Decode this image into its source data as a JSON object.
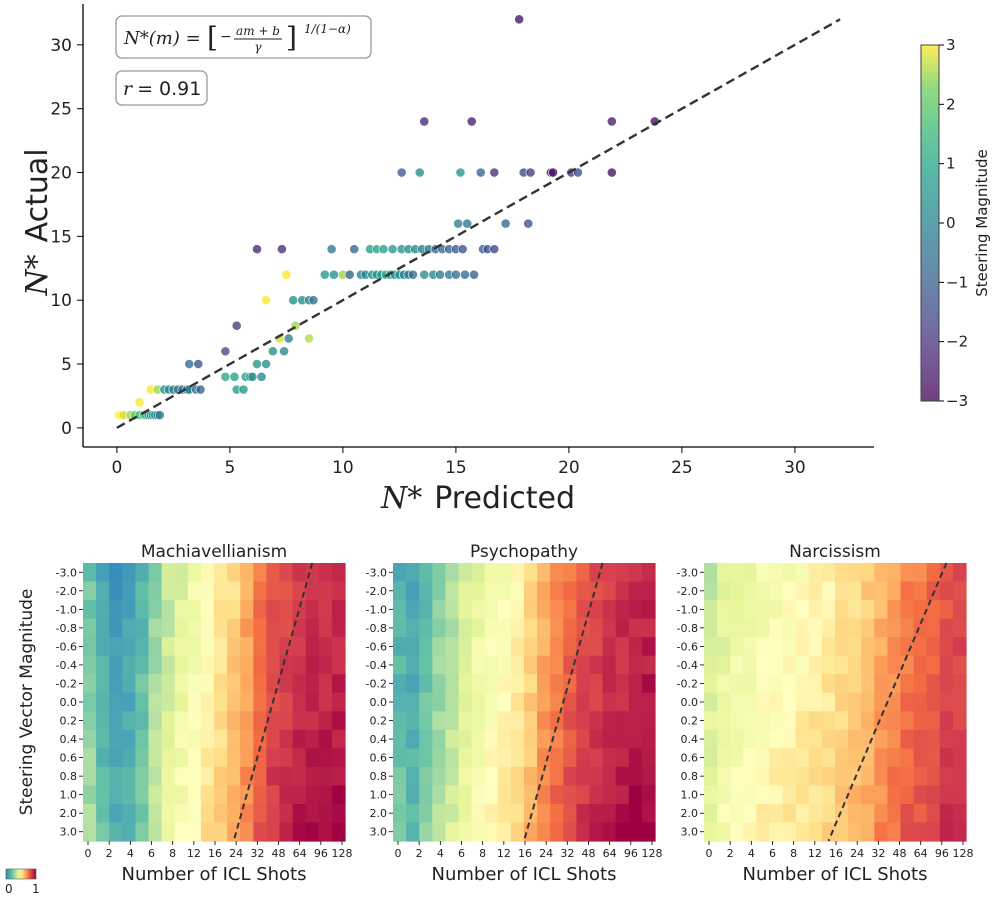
{
  "chart_data": [
    {
      "type": "scatter",
      "id": "nstar",
      "xlabel_math": "N*",
      "xlabel_text": "Predicted",
      "ylabel_math": "N*",
      "ylabel_text": "Actual",
      "xlim": [
        -1.5,
        33.5
      ],
      "ylim": [
        -1.5,
        33.2
      ],
      "xticks": [
        0,
        5,
        10,
        15,
        20,
        25,
        30
      ],
      "yticks": [
        0,
        5,
        10,
        15,
        20,
        25,
        30
      ],
      "formula_text": "N*(m) = [ −(am+b)/γ ]^(1/(1−α))",
      "formula": {
        "lhs": "N*(m) =",
        "num": "am + b",
        "den": "γ",
        "exp": "1/(1−α)"
      },
      "r_label": "r",
      "r_value": "= 0.91",
      "fit_line": {
        "x": [
          0,
          32
        ],
        "y": [
          0,
          32
        ]
      },
      "colorbar": {
        "label": "Steering Magnitude",
        "min": -3,
        "max": 3,
        "ticks": [
          3,
          2,
          1,
          0,
          -1,
          -2,
          -3
        ],
        "palette": "viridis"
      },
      "points": [
        [
          0.1,
          1,
          3
        ],
        [
          0.2,
          1,
          3
        ],
        [
          0.3,
          1,
          2.8
        ],
        [
          0.6,
          1,
          2.5
        ],
        [
          0.8,
          1,
          2
        ],
        [
          1.0,
          1,
          1.8
        ],
        [
          1.2,
          1,
          1.4
        ],
        [
          1.3,
          1,
          1
        ],
        [
          1.4,
          1,
          0.8
        ],
        [
          1.5,
          1,
          0.6
        ],
        [
          1.6,
          1,
          0.4
        ],
        [
          1.7,
          1,
          0.2
        ],
        [
          1.8,
          1,
          0.1
        ],
        [
          1.9,
          1,
          0
        ],
        [
          1.0,
          2,
          3
        ],
        [
          1.5,
          3,
          3
        ],
        [
          1.8,
          3,
          2.5
        ],
        [
          2.1,
          3,
          0.4
        ],
        [
          2.3,
          3,
          0.2
        ],
        [
          2.5,
          3,
          0
        ],
        [
          2.7,
          3,
          -0.2
        ],
        [
          2.9,
          3,
          -0.4
        ],
        [
          3.1,
          3,
          -0.6
        ],
        [
          3.2,
          3,
          -0.2
        ],
        [
          3.5,
          3,
          -0.5
        ],
        [
          3.7,
          3,
          -0.8
        ],
        [
          3.2,
          5,
          -0.8
        ],
        [
          3.6,
          5,
          -1.2
        ],
        [
          4.8,
          6,
          -1.5
        ],
        [
          5.3,
          8,
          -1.8
        ],
        [
          4.8,
          4,
          1
        ],
        [
          5.2,
          4,
          0.9
        ],
        [
          5.7,
          4,
          0.7
        ],
        [
          5.9,
          4,
          0.5
        ],
        [
          6.0,
          4,
          0.3
        ],
        [
          6.4,
          4,
          0.2
        ],
        [
          5.3,
          3,
          0.8
        ],
        [
          5.6,
          3,
          0.6
        ],
        [
          6.2,
          5,
          0.5
        ],
        [
          6.6,
          5,
          0.3
        ],
        [
          6.9,
          6,
          0.2
        ],
        [
          7.4,
          6,
          0.1
        ],
        [
          7.6,
          7,
          -0.1
        ],
        [
          6.6,
          10,
          3
        ],
        [
          7.5,
          12,
          3
        ],
        [
          7.2,
          7,
          2.8
        ],
        [
          7.9,
          8,
          2.5
        ],
        [
          8.5,
          7,
          2.6
        ],
        [
          6.2,
          14,
          -2.3
        ],
        [
          7.3,
          14,
          -2.2
        ],
        [
          7.8,
          10,
          0.4
        ],
        [
          8.2,
          10,
          0.2
        ],
        [
          8.5,
          10,
          -0.2
        ],
        [
          8.7,
          10,
          -0.4
        ],
        [
          9.2,
          12,
          0.6
        ],
        [
          9.6,
          12,
          0.3
        ],
        [
          9.5,
          14,
          -0.3
        ],
        [
          10.0,
          12,
          2.5
        ],
        [
          10.3,
          12,
          -1
        ],
        [
          10.5,
          14,
          -0.8
        ],
        [
          10.8,
          12,
          -0.2
        ],
        [
          11.0,
          12,
          0.2
        ],
        [
          11.3,
          12,
          0.4
        ],
        [
          11.5,
          12,
          0.6
        ],
        [
          11.7,
          12,
          0.8
        ],
        [
          11.9,
          12,
          1
        ],
        [
          12.1,
          12,
          0.7
        ],
        [
          12.3,
          12,
          0.5
        ],
        [
          12.5,
          12,
          0.3
        ],
        [
          12.7,
          12,
          0
        ],
        [
          12.9,
          12,
          -0.3
        ],
        [
          13.1,
          12,
          -0.5
        ],
        [
          11.2,
          14,
          0.8
        ],
        [
          11.5,
          14,
          1
        ],
        [
          11.8,
          14,
          0.9
        ],
        [
          12.2,
          14,
          0.7
        ],
        [
          12.6,
          14,
          0.5
        ],
        [
          12.9,
          14,
          0.3
        ],
        [
          13.2,
          14,
          0.1
        ],
        [
          13.5,
          14,
          -0.1
        ],
        [
          13.8,
          14,
          -0.3
        ],
        [
          14.1,
          14,
          -0.5
        ],
        [
          14.4,
          14,
          -0.7
        ],
        [
          14.7,
          14,
          -0.9
        ],
        [
          15.0,
          14,
          -1.1
        ],
        [
          15.3,
          14,
          -1.3
        ],
        [
          13.6,
          12,
          0.3
        ],
        [
          14.0,
          12,
          0.1
        ],
        [
          14.3,
          12,
          -0.1
        ],
        [
          14.7,
          12,
          -0.3
        ],
        [
          15.0,
          12,
          -0.5
        ],
        [
          15.4,
          12,
          -0.7
        ],
        [
          15.8,
          12,
          -0.9
        ],
        [
          15.1,
          16,
          0
        ],
        [
          15.5,
          16,
          -0.3
        ],
        [
          16.2,
          14,
          -1.1
        ],
        [
          16.4,
          14,
          -1.3
        ],
        [
          16.7,
          14,
          -1.5
        ],
        [
          17.2,
          16,
          -0.8
        ],
        [
          18.2,
          16,
          -1.2
        ],
        [
          12.6,
          20,
          -1.0
        ],
        [
          13.4,
          20,
          0.2
        ],
        [
          15.2,
          20,
          0.5
        ],
        [
          16.1,
          20,
          -0.8
        ],
        [
          16.7,
          20,
          -2.1
        ],
        [
          18.0,
          20,
          -1.5
        ],
        [
          18.3,
          20,
          -1.8
        ],
        [
          19.2,
          20,
          -2.5
        ],
        [
          19.3,
          20,
          -2.7
        ],
        [
          20.1,
          20,
          -1.8
        ],
        [
          20.4,
          20,
          -1.4
        ],
        [
          21.9,
          20,
          -2.7
        ],
        [
          13.6,
          24,
          -2.2
        ],
        [
          15.7,
          24,
          -2.4
        ],
        [
          21.9,
          24,
          -2.5
        ],
        [
          23.8,
          24,
          -2.7
        ],
        [
          17.8,
          32,
          -2.6
        ]
      ]
    },
    {
      "type": "heatmap",
      "id": "machiavellianism",
      "title": "Machiavellianism",
      "xlabel": "Number of ICL Shots",
      "ylabel": "Steering Vector Magnitude",
      "boundary_start_col": 11.5,
      "boundary_slope": 0.4,
      "base_values": [
        0.25,
        0.16,
        0.1,
        0.13,
        0.2,
        0.3,
        0.38,
        0.43,
        0.48,
        0.53,
        0.58,
        0.63,
        0.71,
        0.8,
        0.86,
        0.89,
        0.91,
        0.92,
        0.93,
        0.94
      ]
    },
    {
      "type": "heatmap",
      "id": "psychopathy",
      "title": "Psychopathy",
      "xlabel": "Number of ICL Shots",
      "ylabel": "",
      "boundary_start_col": 10.0,
      "boundary_slope": 0.4,
      "base_values": [
        0.18,
        0.14,
        0.22,
        0.28,
        0.34,
        0.4,
        0.45,
        0.48,
        0.51,
        0.55,
        0.62,
        0.7,
        0.76,
        0.82,
        0.86,
        0.89,
        0.91,
        0.93,
        0.95,
        0.96
      ]
    },
    {
      "type": "heatmap",
      "id": "narcissism",
      "title": "Narcissism",
      "xlabel": "Number of ICL Shots",
      "ylabel": "",
      "boundary_start_col": 9.5,
      "boundary_slope": 0.6,
      "base_values": [
        0.38,
        0.42,
        0.45,
        0.47,
        0.49,
        0.5,
        0.52,
        0.53,
        0.55,
        0.57,
        0.6,
        0.62,
        0.65,
        0.7,
        0.74,
        0.78,
        0.8,
        0.83,
        0.86,
        0.88
      ]
    }
  ],
  "heatmap_common": {
    "rows": [
      "-3.0",
      "-2.0",
      "-1.0",
      "-0.8",
      "-0.6",
      "-0.4",
      "-0.2",
      "0.0",
      "0.2",
      "0.4",
      "0.6",
      "0.8",
      "1.0",
      "2.0",
      "3.0"
    ],
    "xticks": [
      "0",
      "2",
      "4",
      "6",
      "8",
      "12",
      "16",
      "24",
      "32",
      "48",
      "64",
      "96",
      "128"
    ],
    "colorscale": {
      "min_label": "0",
      "max_label": "1",
      "palette": "Spectral_r"
    }
  }
}
